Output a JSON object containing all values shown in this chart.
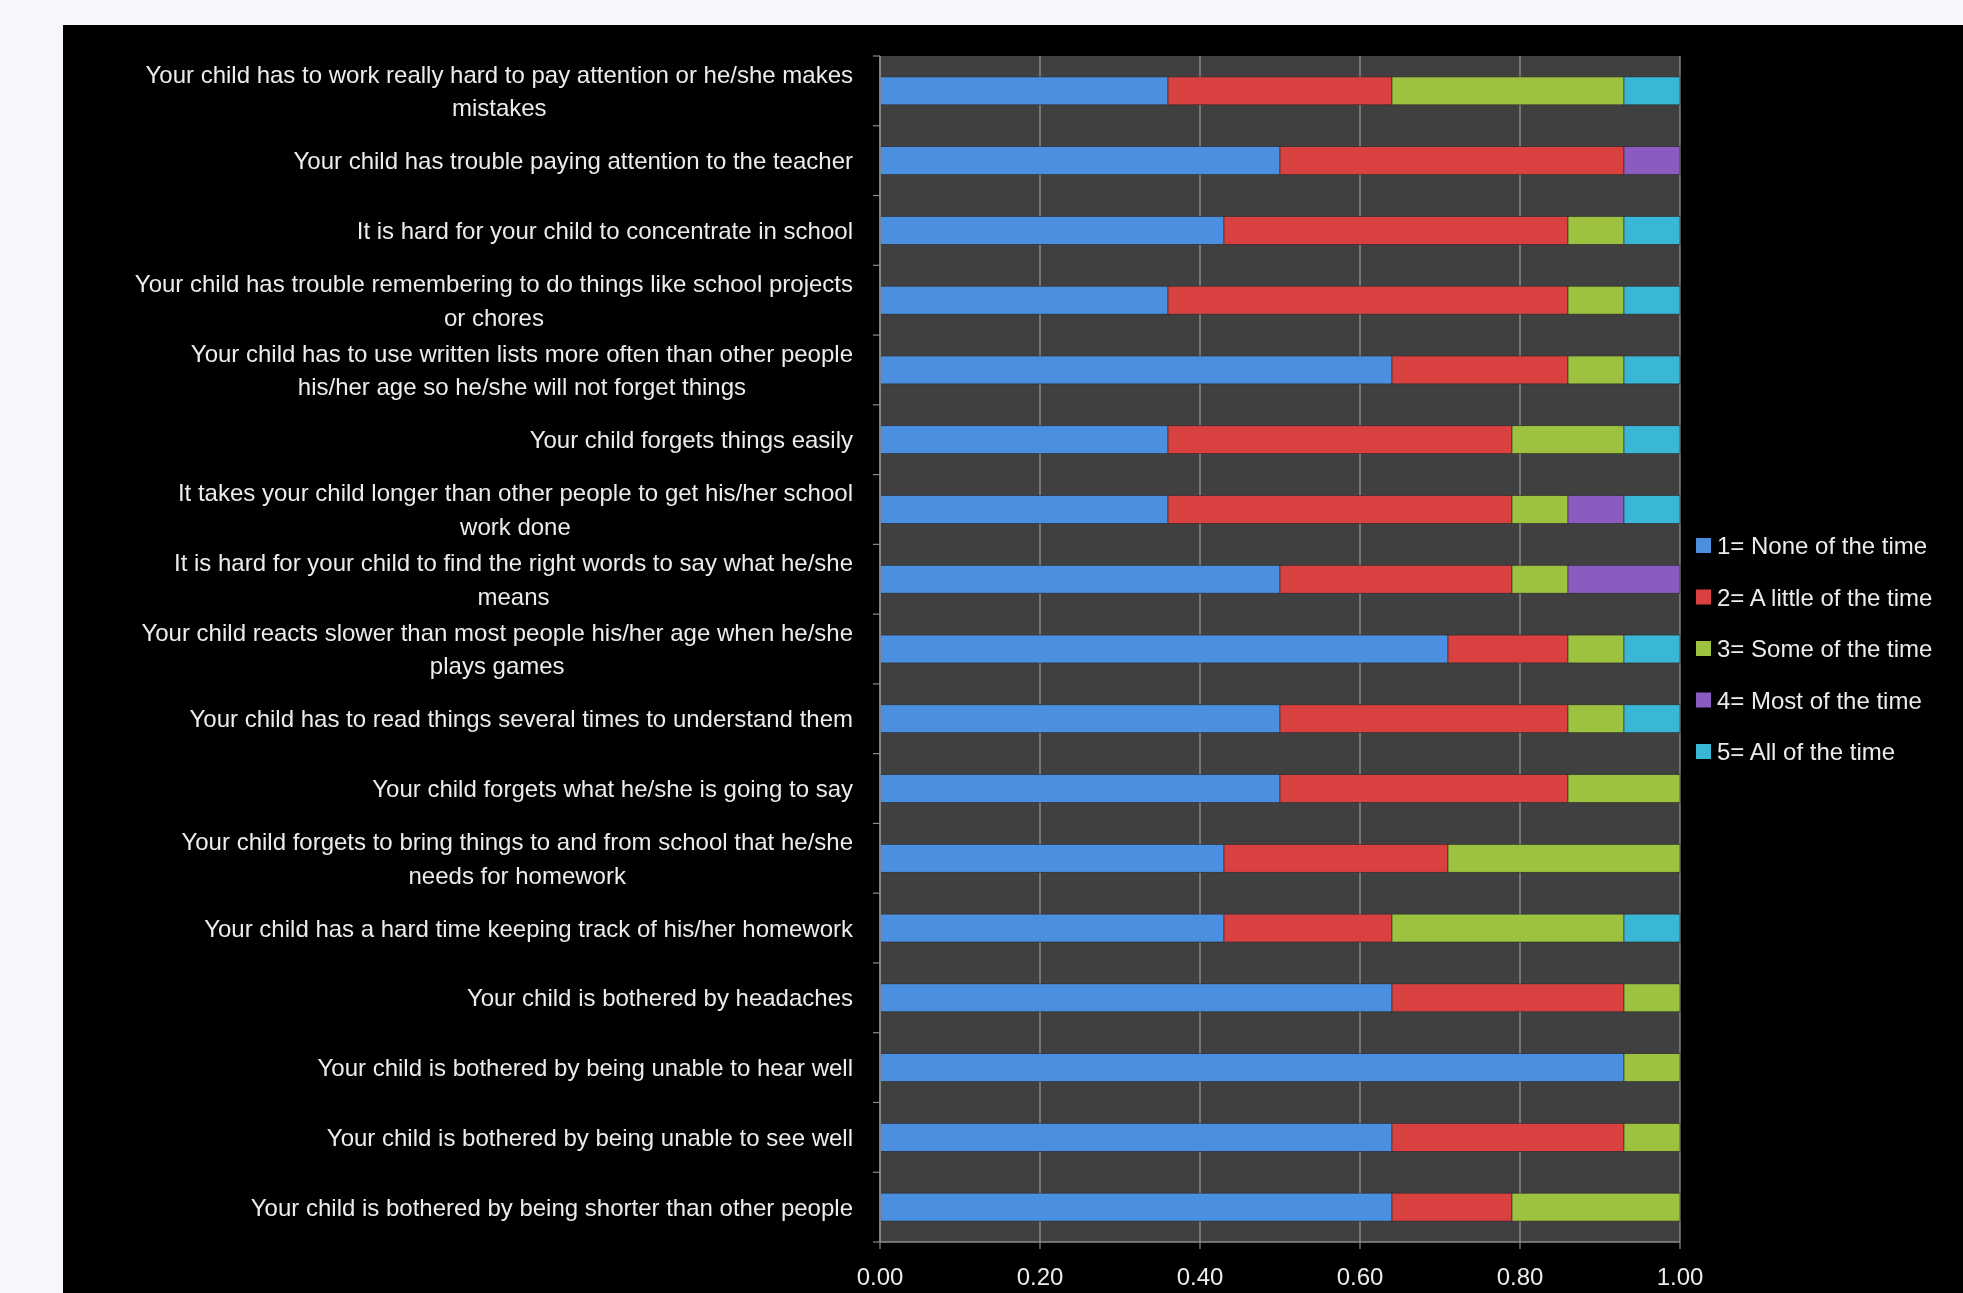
{
  "chart_data": {
    "type": "bar",
    "orientation": "horizontal",
    "stacked": true,
    "categories": [
      "Your child has to work really hard to pay attention or he/she makes mistakes",
      "Your child has trouble paying attention to the teacher",
      "It is hard for your child to concentrate in school",
      "Your child has trouble remembering to do things like school projects or chores",
      "Your child has to use written lists more often than other people his/her age so he/she will not forget things",
      "Your child forgets things easily",
      "It takes your child longer than other people to get his/her school work done",
      "It is hard for your child to find the right words to say what he/she means",
      "Your child reacts slower than most people his/her age when he/she plays games",
      "Your child has to read things several times to understand them",
      "Your child forgets what he/she is going to say",
      "Your child forgets to bring things to and from school that he/she needs for homework",
      "Your child has a hard time keeping track of his/her homework",
      "Your child is bothered by headaches",
      "Your child is bothered by being unable to hear well",
      "Your child is bothered by being unable to see well",
      "Your child is bothered by being shorter than other people"
    ],
    "series": [
      {
        "name": "1= None of the time",
        "color": "#4a8fe0",
        "values": [
          0.36,
          0.5,
          0.43,
          0.36,
          0.64,
          0.36,
          0.36,
          0.5,
          0.71,
          0.5,
          0.5,
          0.43,
          0.43,
          0.64,
          0.93,
          0.64,
          0.64
        ]
      },
      {
        "name": "2= A little of the time",
        "color": "#d94040",
        "values": [
          0.28,
          0.43,
          0.43,
          0.5,
          0.22,
          0.43,
          0.43,
          0.29,
          0.15,
          0.36,
          0.36,
          0.28,
          0.21,
          0.29,
          0,
          0.29,
          0.15
        ]
      },
      {
        "name": "3= Some of the time",
        "color": "#9dc23f",
        "values": [
          0.29,
          0,
          0.07,
          0.07,
          0.07,
          0.14,
          0.07,
          0.07,
          0.07,
          0.07,
          0.14,
          0.29,
          0.29,
          0.07,
          0.07,
          0.07,
          0.21
        ]
      },
      {
        "name": "4= Most of the time",
        "color": "#8a5cc0",
        "values": [
          0,
          0.07,
          0,
          0,
          0,
          0,
          0.07,
          0.14,
          0,
          0,
          0,
          0,
          0,
          0,
          0,
          0,
          0
        ]
      },
      {
        "name": "5= All of the time",
        "color": "#3ab7d6",
        "values": [
          0.07,
          0,
          0.07,
          0.07,
          0.07,
          0.07,
          0.07,
          0,
          0.07,
          0.07,
          0,
          0,
          0.07,
          0,
          0,
          0,
          0
        ]
      }
    ],
    "xlim": [
      0,
      1
    ],
    "xticks": [
      {
        "value": 0,
        "label": "0.00"
      },
      {
        "value": 0.2,
        "label": "0.20"
      },
      {
        "value": 0.4,
        "label": "0.40"
      },
      {
        "value": 0.6,
        "label": "0.60"
      },
      {
        "value": 0.8,
        "label": "0.80"
      },
      {
        "value": 1,
        "label": "1.00"
      }
    ],
    "grid": "x",
    "legend": "right"
  }
}
